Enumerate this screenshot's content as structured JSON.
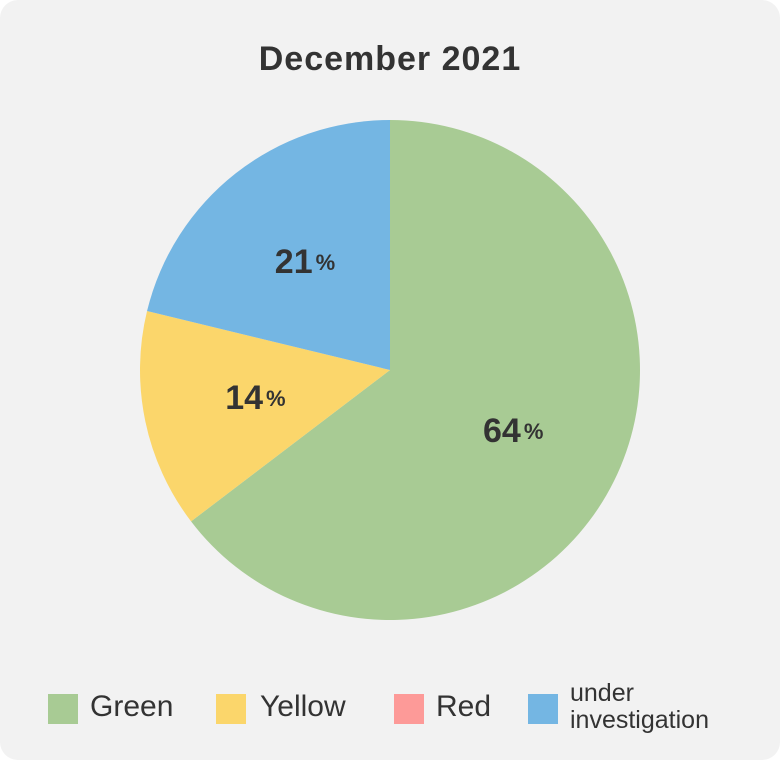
{
  "chart_data": {
    "type": "pie",
    "title": "December 2021",
    "slices": [
      {
        "label": "Green",
        "value": 64,
        "display": "64",
        "color": "#a8cb94"
      },
      {
        "label": "Yellow",
        "value": 14,
        "display": "14",
        "color": "#fbd66b"
      },
      {
        "label": "Red",
        "value": 0,
        "display": "",
        "color": "#fd9a98"
      },
      {
        "label": "under investigation",
        "value": 21,
        "display": "21",
        "color": "#74b6e3"
      }
    ],
    "unit": "%",
    "legend_position": "bottom"
  },
  "legend": {
    "items": [
      {
        "label": "Green",
        "color": "#a8cb94"
      },
      {
        "label": "Yellow",
        "color": "#fbd66b"
      },
      {
        "label": "Red",
        "color": "#fd9a98"
      },
      {
        "label_line1": "under",
        "label_line2": "investigation",
        "color": "#74b6e3"
      }
    ]
  }
}
